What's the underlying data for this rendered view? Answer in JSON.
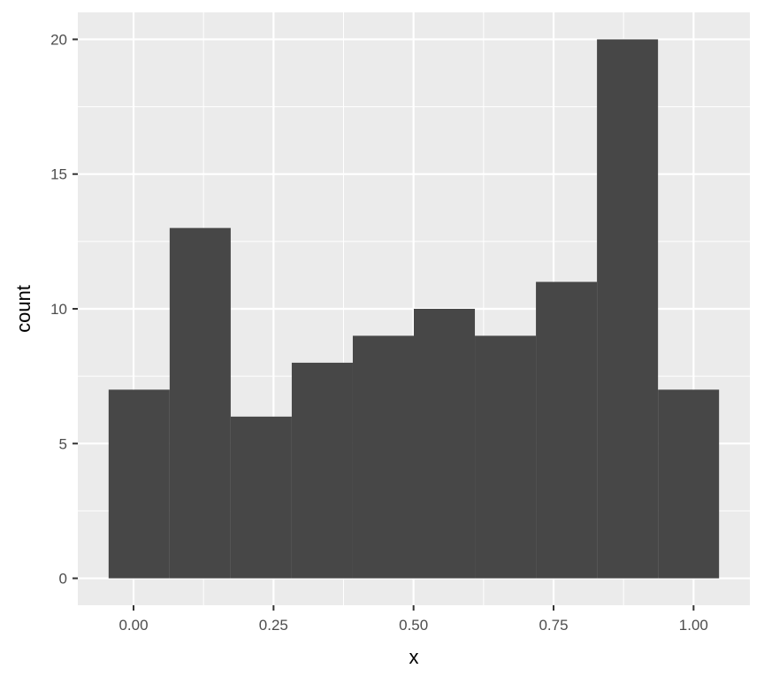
{
  "chart_data": {
    "type": "bar",
    "subtype": "histogram",
    "title": "",
    "xlabel": "x",
    "ylabel": "count",
    "bins": [
      {
        "x0": -0.0445,
        "x1": 0.0645,
        "count": 7
      },
      {
        "x0": 0.0645,
        "x1": 0.1735,
        "count": 13
      },
      {
        "x0": 0.1735,
        "x1": 0.2825,
        "count": 6
      },
      {
        "x0": 0.2825,
        "x1": 0.3915,
        "count": 8
      },
      {
        "x0": 0.3915,
        "x1": 0.5005,
        "count": 9
      },
      {
        "x0": 0.5005,
        "x1": 0.6095,
        "count": 10
      },
      {
        "x0": 0.6095,
        "x1": 0.7185,
        "count": 9
      },
      {
        "x0": 0.7185,
        "x1": 0.8275,
        "count": 11
      },
      {
        "x0": 0.8275,
        "x1": 0.9365,
        "count": 20
      },
      {
        "x0": 0.9365,
        "x1": 1.0455,
        "count": 7
      }
    ],
    "xlim": [
      -0.0995,
      1.1005
    ],
    "ylim": [
      -1.0,
      21.0
    ],
    "x_ticks": [
      0,
      0.25,
      0.5,
      0.75,
      1.0
    ],
    "x_tick_labels": [
      "0.00",
      "0.25",
      "0.50",
      "0.75",
      "1.00"
    ],
    "y_ticks": [
      0,
      5,
      10,
      15,
      20
    ],
    "y_tick_labels": [
      "0",
      "5",
      "10",
      "15",
      "20"
    ],
    "grid": true,
    "colors": {
      "panel": "#EBEBEB",
      "grid": "#FFFFFF",
      "bar": "#474747",
      "axis_text": "#4D4D4D"
    }
  }
}
